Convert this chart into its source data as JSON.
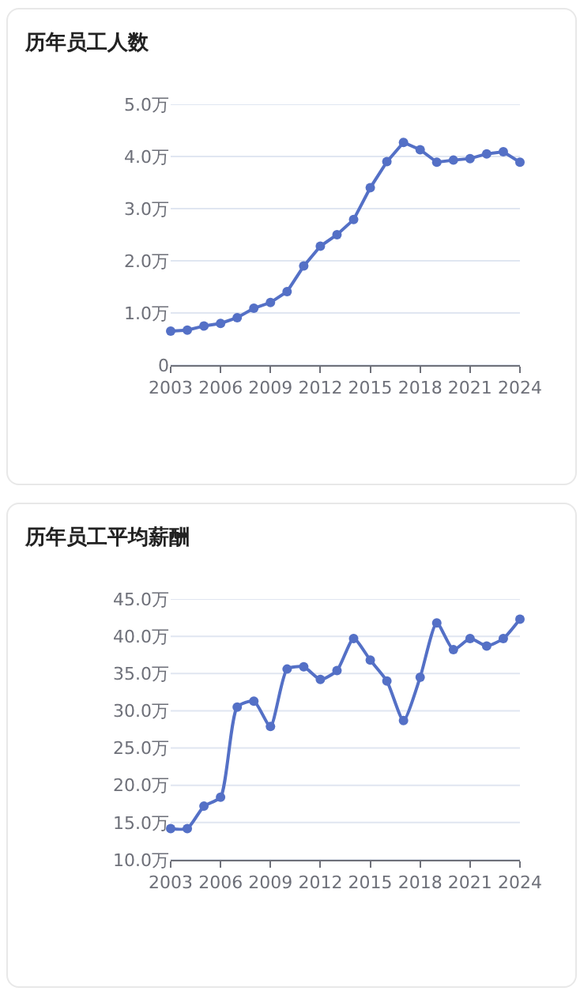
{
  "chart_data": [
    {
      "type": "line",
      "title": "历年员工人数",
      "x": [
        2003,
        2004,
        2005,
        2006,
        2007,
        2008,
        2009,
        2010,
        2011,
        2012,
        2013,
        2014,
        2015,
        2016,
        2017,
        2018,
        2019,
        2020,
        2021,
        2022,
        2023,
        2024
      ],
      "series": [
        {
          "color": "#5470c6",
          "values": [
            0.65,
            0.67,
            0.75,
            0.8,
            0.91,
            1.09,
            1.2,
            1.41,
            1.9,
            2.28,
            2.5,
            2.79,
            3.4,
            3.9,
            4.27,
            4.13,
            3.89,
            3.93,
            3.96,
            4.05,
            4.09,
            3.89
          ]
        }
      ],
      "xlim": [
        2003,
        2024
      ],
      "xticks": [
        2003,
        2006,
        2009,
        2012,
        2015,
        2018,
        2021,
        2024
      ],
      "ylim": [
        0,
        5
      ],
      "yticks": [
        0,
        {
          "value": 1,
          "label": "1.0万"
        },
        {
          "value": 2,
          "label": "2.0万"
        },
        {
          "value": 3,
          "label": "3.0万"
        },
        {
          "value": 4,
          "label": "4.0万"
        },
        {
          "value": 5,
          "label": "5.0万"
        }
      ],
      "grid": "y",
      "marker": "circle"
    },
    {
      "type": "line",
      "title": "历年员工平均薪酬",
      "x": [
        2003,
        2004,
        2005,
        2006,
        2007,
        2008,
        2009,
        2010,
        2011,
        2012,
        2013,
        2014,
        2015,
        2016,
        2017,
        2018,
        2019,
        2020,
        2021,
        2022,
        2023,
        2024
      ],
      "series": [
        {
          "color": "#5470c6",
          "values": [
            14.2,
            14.2,
            17.2,
            18.4,
            30.5,
            31.3,
            27.9,
            35.6,
            35.9,
            34.2,
            35.4,
            39.7,
            36.8,
            34.0,
            28.7,
            34.5,
            41.8,
            38.2,
            39.7,
            38.7,
            39.7,
            42.3
          ]
        }
      ],
      "xlim": [
        2003,
        2024
      ],
      "xticks": [
        2003,
        2006,
        2009,
        2012,
        2015,
        2018,
        2021,
        2024
      ],
      "ylim": [
        10,
        45
      ],
      "yticks": [
        {
          "value": 10,
          "label": "10.0万"
        },
        {
          "value": 15,
          "label": "15.0万"
        },
        {
          "value": 20,
          "label": "20.0万"
        },
        {
          "value": 25,
          "label": "25.0万"
        },
        {
          "value": 30,
          "label": "30.0万"
        },
        {
          "value": 35,
          "label": "35.0万"
        },
        {
          "value": 40,
          "label": "40.0万"
        },
        {
          "value": 45,
          "label": "45.0万"
        }
      ],
      "grid": "y",
      "marker": "circle"
    }
  ]
}
